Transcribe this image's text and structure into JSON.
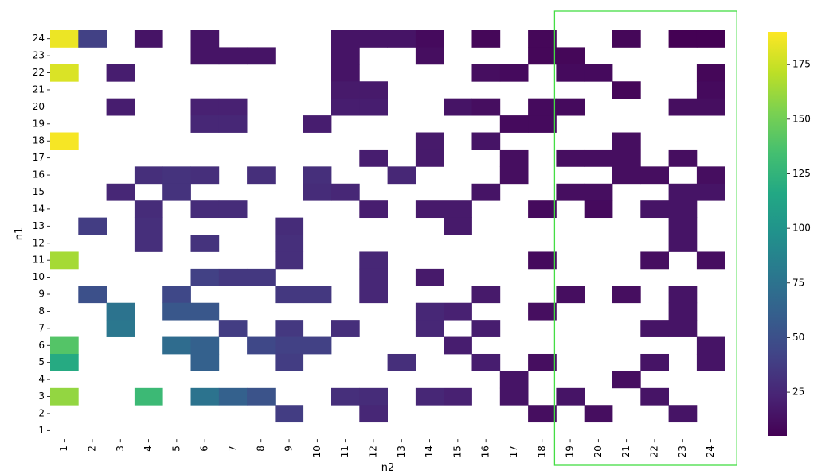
{
  "chart_data": {
    "type": "heatmap",
    "xlabel": "n2",
    "ylabel": "n1",
    "x_categories": [
      "1",
      "2",
      "3",
      "4",
      "5",
      "6",
      "7",
      "8",
      "9",
      "10",
      "11",
      "12",
      "13",
      "14",
      "15",
      "16",
      "17",
      "18",
      "19",
      "20",
      "21",
      "22",
      "23",
      "24"
    ],
    "y_categories": [
      "24",
      "23",
      "22",
      "21",
      "20",
      "19",
      "18",
      "17",
      "16",
      "15",
      "14",
      "13",
      "12",
      "11",
      "10",
      "9",
      "8",
      "7",
      "6",
      "5",
      "4",
      "3",
      "2",
      "1"
    ],
    "colormap": "viridis",
    "value_range": [
      5,
      190
    ],
    "colorbar_ticks": [
      25,
      50,
      75,
      100,
      125,
      150,
      175
    ],
    "highlight": {
      "x_from": "19",
      "x_to": "24",
      "color": "#44dd44"
    },
    "cells": [
      [
        "24",
        "1",
        185
      ],
      [
        "24",
        "2",
        40
      ],
      [
        "24",
        "4",
        15
      ],
      [
        "24",
        "6",
        15
      ],
      [
        "24",
        "11",
        15
      ],
      [
        "24",
        "12",
        15
      ],
      [
        "24",
        "13",
        15
      ],
      [
        "24",
        "14",
        10
      ],
      [
        "24",
        "16",
        8
      ],
      [
        "24",
        "18",
        8
      ],
      [
        "24",
        "21",
        8
      ],
      [
        "24",
        "23",
        5
      ],
      [
        "24",
        "24",
        5
      ],
      [
        "23",
        "6",
        15
      ],
      [
        "23",
        "7",
        15
      ],
      [
        "23",
        "8",
        15
      ],
      [
        "23",
        "11",
        15
      ],
      [
        "23",
        "14",
        12
      ],
      [
        "23",
        "18",
        8
      ],
      [
        "23",
        "19",
        8
      ],
      [
        "22",
        "1",
        180
      ],
      [
        "22",
        "3",
        20
      ],
      [
        "22",
        "11",
        15
      ],
      [
        "22",
        "16",
        12
      ],
      [
        "22",
        "17",
        10
      ],
      [
        "22",
        "19",
        10
      ],
      [
        "22",
        "20",
        10
      ],
      [
        "22",
        "24",
        8
      ],
      [
        "21",
        "11",
        18
      ],
      [
        "21",
        "12",
        18
      ],
      [
        "21",
        "21",
        8
      ],
      [
        "21",
        "24",
        10
      ],
      [
        "20",
        "3",
        20
      ],
      [
        "20",
        "6",
        22
      ],
      [
        "20",
        "7",
        22
      ],
      [
        "20",
        "11",
        20
      ],
      [
        "20",
        "12",
        20
      ],
      [
        "20",
        "15",
        15
      ],
      [
        "20",
        "16",
        12
      ],
      [
        "20",
        "18",
        10
      ],
      [
        "20",
        "19",
        10
      ],
      [
        "20",
        "23",
        12
      ],
      [
        "20",
        "24",
        12
      ],
      [
        "19",
        "6",
        25
      ],
      [
        "19",
        "7",
        25
      ],
      [
        "19",
        "10",
        20
      ],
      [
        "19",
        "17",
        10
      ],
      [
        "19",
        "18",
        10
      ],
      [
        "18",
        "1",
        188
      ],
      [
        "18",
        "14",
        18
      ],
      [
        "18",
        "16",
        15
      ],
      [
        "18",
        "21",
        12
      ],
      [
        "17",
        "12",
        20
      ],
      [
        "17",
        "14",
        18
      ],
      [
        "17",
        "17",
        12
      ],
      [
        "17",
        "19",
        12
      ],
      [
        "17",
        "20",
        12
      ],
      [
        "17",
        "21",
        12
      ],
      [
        "17",
        "23",
        12
      ],
      [
        "16",
        "4",
        30
      ],
      [
        "16",
        "5",
        32
      ],
      [
        "16",
        "6",
        30
      ],
      [
        "16",
        "8",
        30
      ],
      [
        "16",
        "10",
        30
      ],
      [
        "16",
        "13",
        25
      ],
      [
        "16",
        "17",
        12
      ],
      [
        "16",
        "21",
        12
      ],
      [
        "16",
        "22",
        12
      ],
      [
        "16",
        "24",
        12
      ],
      [
        "15",
        "3",
        25
      ],
      [
        "15",
        "5",
        32
      ],
      [
        "15",
        "10",
        28
      ],
      [
        "15",
        "11",
        25
      ],
      [
        "15",
        "16",
        15
      ],
      [
        "15",
        "19",
        12
      ],
      [
        "15",
        "20",
        12
      ],
      [
        "15",
        "23",
        15
      ],
      [
        "15",
        "24",
        15
      ],
      [
        "14",
        "4",
        28
      ],
      [
        "14",
        "6",
        28
      ],
      [
        "14",
        "7",
        28
      ],
      [
        "14",
        "12",
        20
      ],
      [
        "14",
        "14",
        18
      ],
      [
        "14",
        "15",
        18
      ],
      [
        "14",
        "18",
        10
      ],
      [
        "14",
        "20",
        10
      ],
      [
        "14",
        "22",
        15
      ],
      [
        "14",
        "23",
        15
      ],
      [
        "13",
        "2",
        38
      ],
      [
        "13",
        "4",
        30
      ],
      [
        "13",
        "9",
        28
      ],
      [
        "13",
        "15",
        18
      ],
      [
        "13",
        "23",
        15
      ],
      [
        "12",
        "4",
        30
      ],
      [
        "12",
        "6",
        32
      ],
      [
        "12",
        "9",
        30
      ],
      [
        "12",
        "23",
        15
      ],
      [
        "11",
        "1",
        165
      ],
      [
        "11",
        "9",
        30
      ],
      [
        "11",
        "12",
        25
      ],
      [
        "11",
        "18",
        10
      ],
      [
        "11",
        "22",
        12
      ],
      [
        "11",
        "24",
        12
      ],
      [
        "10",
        "6",
        40
      ],
      [
        "10",
        "7",
        35
      ],
      [
        "10",
        "8",
        35
      ],
      [
        "10",
        "12",
        25
      ],
      [
        "10",
        "14",
        18
      ],
      [
        "9",
        "2",
        50
      ],
      [
        "9",
        "5",
        45
      ],
      [
        "9",
        "9",
        35
      ],
      [
        "9",
        "10",
        35
      ],
      [
        "9",
        "12",
        25
      ],
      [
        "9",
        "16",
        18
      ],
      [
        "9",
        "19",
        12
      ],
      [
        "9",
        "21",
        12
      ],
      [
        "9",
        "23",
        15
      ],
      [
        "8",
        "3",
        75
      ],
      [
        "8",
        "5",
        55
      ],
      [
        "8",
        "6",
        55
      ],
      [
        "8",
        "14",
        25
      ],
      [
        "8",
        "15",
        22
      ],
      [
        "8",
        "18",
        12
      ],
      [
        "8",
        "23",
        15
      ],
      [
        "7",
        "3",
        78
      ],
      [
        "7",
        "7",
        38
      ],
      [
        "7",
        "9",
        35
      ],
      [
        "7",
        "11",
        30
      ],
      [
        "7",
        "14",
        25
      ],
      [
        "7",
        "16",
        20
      ],
      [
        "7",
        "22",
        15
      ],
      [
        "7",
        "23",
        15
      ],
      [
        "6",
        "1",
        140
      ],
      [
        "6",
        "5",
        70
      ],
      [
        "6",
        "6",
        62
      ],
      [
        "6",
        "8",
        45
      ],
      [
        "6",
        "9",
        40
      ],
      [
        "6",
        "10",
        40
      ],
      [
        "6",
        "15",
        20
      ],
      [
        "6",
        "24",
        15
      ],
      [
        "5",
        "1",
        118
      ],
      [
        "5",
        "6",
        62
      ],
      [
        "5",
        "9",
        38
      ],
      [
        "5",
        "13",
        30
      ],
      [
        "5",
        "16",
        20
      ],
      [
        "5",
        "18",
        12
      ],
      [
        "5",
        "22",
        15
      ],
      [
        "5",
        "24",
        15
      ],
      [
        "4",
        "17",
        15
      ],
      [
        "4",
        "21",
        12
      ],
      [
        "3",
        "1",
        160
      ],
      [
        "3",
        "4",
        130
      ],
      [
        "3",
        "6",
        75
      ],
      [
        "3",
        "7",
        62
      ],
      [
        "3",
        "8",
        52
      ],
      [
        "3",
        "11",
        30
      ],
      [
        "3",
        "12",
        28
      ],
      [
        "3",
        "14",
        25
      ],
      [
        "3",
        "15",
        22
      ],
      [
        "3",
        "17",
        15
      ],
      [
        "3",
        "19",
        15
      ],
      [
        "3",
        "22",
        15
      ],
      [
        "2",
        "9",
        38
      ],
      [
        "2",
        "12",
        25
      ],
      [
        "2",
        "18",
        12
      ],
      [
        "2",
        "20",
        12
      ],
      [
        "2",
        "23",
        15
      ]
    ]
  }
}
